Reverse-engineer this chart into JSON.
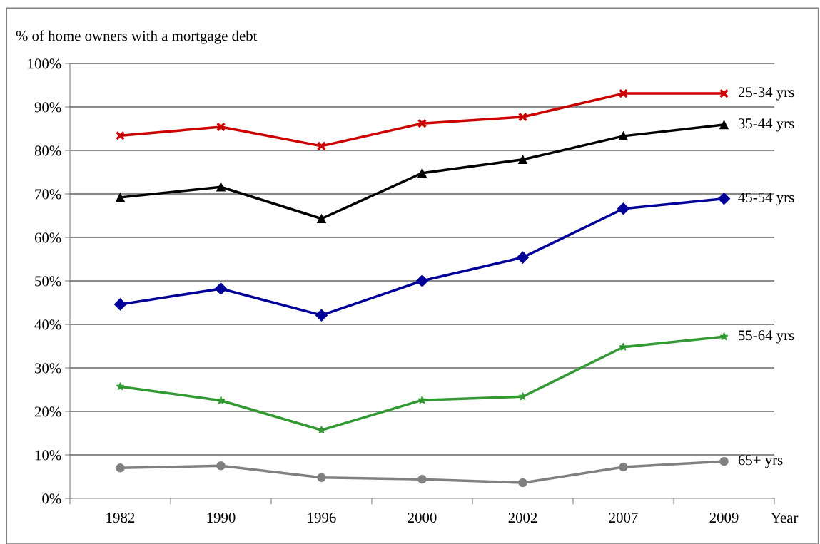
{
  "chart_data": {
    "type": "line",
    "ylabel": "% of home owners with a mortgage debt",
    "xlabel": "Year",
    "categories": [
      "1982",
      "1990",
      "1996",
      "2000",
      "2002",
      "2007",
      "2009"
    ],
    "ylim": [
      0,
      100
    ],
    "yticks": [
      {
        "value": 0,
        "label": "0%"
      },
      {
        "value": 10,
        "label": "10%"
      },
      {
        "value": 20,
        "label": "20%"
      },
      {
        "value": 30,
        "label": "30%"
      },
      {
        "value": 40,
        "label": "40%"
      },
      {
        "value": 50,
        "label": "50%"
      },
      {
        "value": 60,
        "label": "60%"
      },
      {
        "value": 70,
        "label": "70%"
      },
      {
        "value": 80,
        "label": "80%"
      },
      {
        "value": 90,
        "label": "90%"
      },
      {
        "value": 100,
        "label": "100%"
      }
    ],
    "grid": "y",
    "legend": false,
    "series": [
      {
        "name": "25-34 yrs",
        "color": "#cc0000",
        "marker": "cross",
        "values": [
          83.4,
          85.4,
          81.0,
          86.2,
          87.7,
          93.1,
          93.1
        ]
      },
      {
        "name": "35-44 yrs",
        "color": "#000000",
        "marker": "triangle",
        "values": [
          69.2,
          71.6,
          64.3,
          74.8,
          77.9,
          83.3,
          85.9
        ]
      },
      {
        "name": "45-54 yrs",
        "color": "#000099",
        "marker": "diamond",
        "values": [
          44.6,
          48.2,
          42.1,
          50.0,
          55.4,
          66.6,
          68.9
        ]
      },
      {
        "name": "55-64 yrs",
        "color": "#339933",
        "marker": "star",
        "values": [
          25.7,
          22.5,
          15.7,
          22.6,
          23.4,
          34.8,
          37.2
        ]
      },
      {
        "name": "65+ yrs",
        "color": "#808080",
        "marker": "circle",
        "values": [
          7.0,
          7.5,
          4.8,
          4.4,
          3.6,
          7.2,
          8.5
        ]
      }
    ]
  }
}
